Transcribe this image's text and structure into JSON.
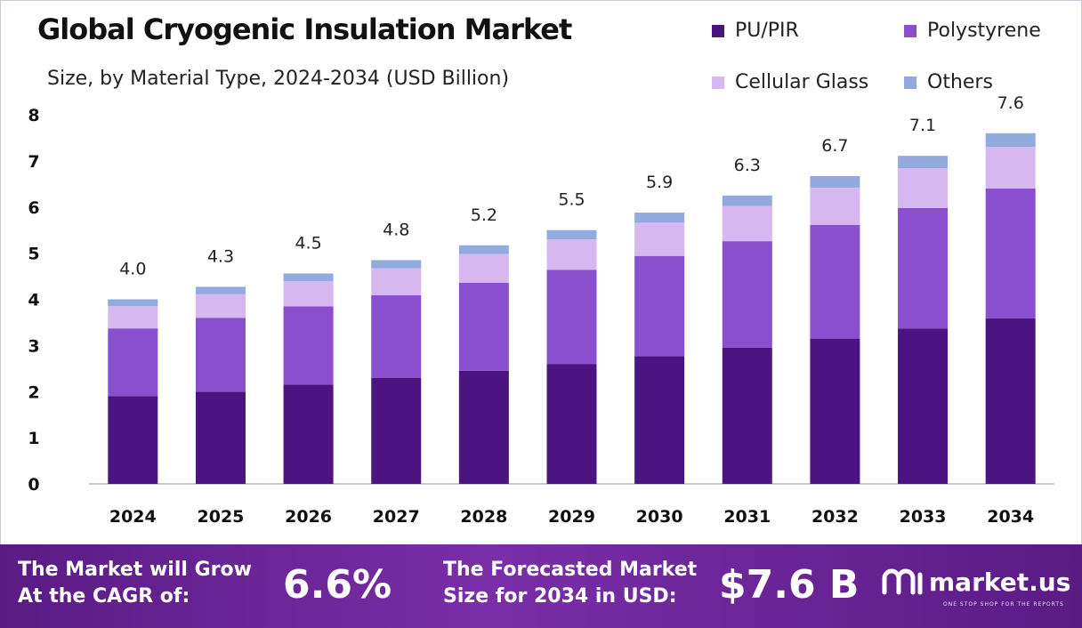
{
  "title": "Global Cryogenic Insulation Market",
  "subtitle": "Size, by Material Type, 2024-2034 (USD Billion)",
  "colors": {
    "pu_pir": "#4b1480",
    "polystyrene": "#8a4fcf",
    "cellular_glass": "#d6b7ef",
    "others": "#93aadf",
    "axis_line": "#bbbbbb",
    "banner": "#6a2496"
  },
  "legend": [
    {
      "label": "PU/PIR",
      "color": "#4b1480"
    },
    {
      "label": "Polystyrene",
      "color": "#8a4fcf"
    },
    {
      "label": "Cellular Glass",
      "color": "#d6b7ef"
    },
    {
      "label": "Others",
      "color": "#93aadf"
    }
  ],
  "chart_data": {
    "type": "bar",
    "stacked": true,
    "title": "Global Cryogenic Insulation Market",
    "subtitle": "Size, by Material Type, 2024-2034 (USD Billion)",
    "categories": [
      "2024",
      "2025",
      "2026",
      "2027",
      "2028",
      "2029",
      "2030",
      "2031",
      "2032",
      "2033",
      "2034"
    ],
    "series": [
      {
        "name": "PU/PIR",
        "color": "#4b1480",
        "values": [
          1.9,
          2.0,
          2.15,
          2.3,
          2.45,
          2.6,
          2.77,
          2.95,
          3.15,
          3.37,
          3.59
        ]
      },
      {
        "name": "Polystyrene",
        "color": "#8a4fcf",
        "values": [
          1.47,
          1.6,
          1.7,
          1.79,
          1.91,
          2.04,
          2.17,
          2.31,
          2.46,
          2.61,
          2.81
        ]
      },
      {
        "name": "Cellular Glass",
        "color": "#d6b7ef",
        "values": [
          0.48,
          0.51,
          0.54,
          0.58,
          0.62,
          0.66,
          0.72,
          0.76,
          0.81,
          0.86,
          0.9
        ]
      },
      {
        "name": "Others",
        "color": "#93aadf",
        "values": [
          0.15,
          0.16,
          0.17,
          0.18,
          0.19,
          0.2,
          0.22,
          0.23,
          0.25,
          0.27,
          0.3
        ]
      }
    ],
    "totals": [
      "4.0",
      "4.3",
      "4.5",
      "4.8",
      "5.2",
      "5.5",
      "5.9",
      "6.3",
      "6.7",
      "7.1",
      "7.6"
    ],
    "yticks": [
      "0",
      "1",
      "2",
      "3",
      "4",
      "5",
      "6",
      "7",
      "8"
    ],
    "ylim": [
      0,
      8
    ],
    "grid": false,
    "legend_position": "top-right",
    "xlabel": "",
    "ylabel": ""
  },
  "banner": {
    "cagr_label": "The Market will Grow\nAt the CAGR of:",
    "cagr_value": "6.6%",
    "forecast_label": "The Forecasted Market\nSize for 2034 in USD:",
    "forecast_value": "$7.6 B",
    "brand_name": "market.us",
    "brand_tagline": "ONE STOP SHOP FOR THE REPORTS"
  }
}
